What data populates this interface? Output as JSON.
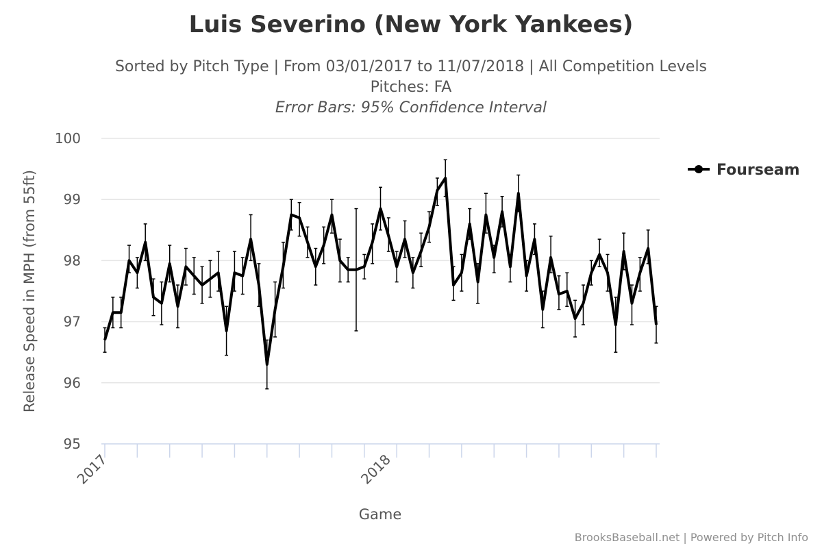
{
  "chart_data": {
    "type": "line",
    "title": "Luis Severino (New York Yankees)",
    "subtitle_lines": [
      "Sorted by Pitch Type | From 03/01/2017 to 11/07/2018 | All Competition Levels",
      "Pitches: FA"
    ],
    "note": "Error Bars: 95% Confidence Interval",
    "xlabel": "Game",
    "ylabel": "Release Speed in MPH (from 55ft)",
    "ylim": [
      95,
      100
    ],
    "yticks": [
      "95",
      "96",
      "97",
      "98",
      "99",
      "100"
    ],
    "xtick_labels": [
      "2017",
      "2018"
    ],
    "grid": "horizontal",
    "legend_position": "top-right",
    "series": [
      {
        "name": "Fourseam",
        "color": "#000000",
        "values": [
          96.7,
          97.15,
          97.15,
          98.0,
          97.8,
          98.3,
          97.4,
          97.3,
          97.95,
          97.25,
          97.9,
          97.75,
          97.6,
          97.7,
          97.8,
          96.85,
          97.8,
          97.75,
          98.35,
          97.6,
          96.3,
          97.2,
          97.9,
          98.75,
          98.7,
          98.3,
          97.9,
          98.25,
          98.75,
          98.0,
          97.85,
          97.85,
          97.9,
          98.3,
          98.85,
          98.4,
          97.9,
          98.35,
          97.8,
          98.15,
          98.55,
          99.15,
          99.35,
          97.6,
          97.8,
          98.6,
          97.65,
          98.75,
          98.05,
          98.8,
          97.9,
          99.1,
          97.75,
          98.35,
          97.2,
          98.05,
          97.45,
          97.5,
          97.05,
          97.3,
          97.8,
          98.1,
          97.8,
          96.95,
          98.15,
          97.3,
          97.8,
          98.2,
          96.95
        ],
        "error_low": [
          96.5,
          96.9,
          96.9,
          97.8,
          97.55,
          98.0,
          97.1,
          96.95,
          97.65,
          96.9,
          97.6,
          97.45,
          97.3,
          97.4,
          97.5,
          96.45,
          97.5,
          97.45,
          98.0,
          97.25,
          95.9,
          96.75,
          97.55,
          98.5,
          98.4,
          98.05,
          97.6,
          97.95,
          98.45,
          97.65,
          97.65,
          96.85,
          97.7,
          97.95,
          98.5,
          98.15,
          97.65,
          98.05,
          97.55,
          97.9,
          98.3,
          98.9,
          99.05,
          97.35,
          97.5,
          98.35,
          97.3,
          98.45,
          97.8,
          98.55,
          97.65,
          98.8,
          97.5,
          98.1,
          96.9,
          97.8,
          97.2,
          97.25,
          96.75,
          96.95,
          97.6,
          97.9,
          97.5,
          96.5,
          97.85,
          96.95,
          97.5,
          97.95,
          96.65
        ],
        "error_high": [
          96.9,
          97.4,
          97.4,
          98.25,
          98.05,
          98.6,
          97.7,
          97.65,
          98.25,
          97.6,
          98.2,
          98.05,
          97.9,
          98.0,
          98.15,
          97.25,
          98.15,
          98.05,
          98.75,
          97.95,
          96.7,
          97.65,
          98.3,
          99.0,
          98.95,
          98.55,
          98.2,
          98.55,
          99.0,
          98.35,
          98.05,
          98.85,
          98.1,
          98.6,
          99.2,
          98.7,
          98.15,
          98.65,
          98.05,
          98.45,
          98.8,
          99.35,
          99.65,
          97.9,
          98.1,
          98.85,
          97.95,
          99.1,
          98.25,
          99.05,
          98.1,
          99.4,
          98.0,
          98.6,
          97.5,
          98.4,
          97.75,
          97.8,
          97.35,
          97.6,
          98.0,
          98.35,
          98.1,
          97.4,
          98.45,
          97.6,
          98.05,
          98.5,
          97.25
        ]
      }
    ]
  },
  "credits": "BrooksBaseball.net | Powered by Pitch Info"
}
